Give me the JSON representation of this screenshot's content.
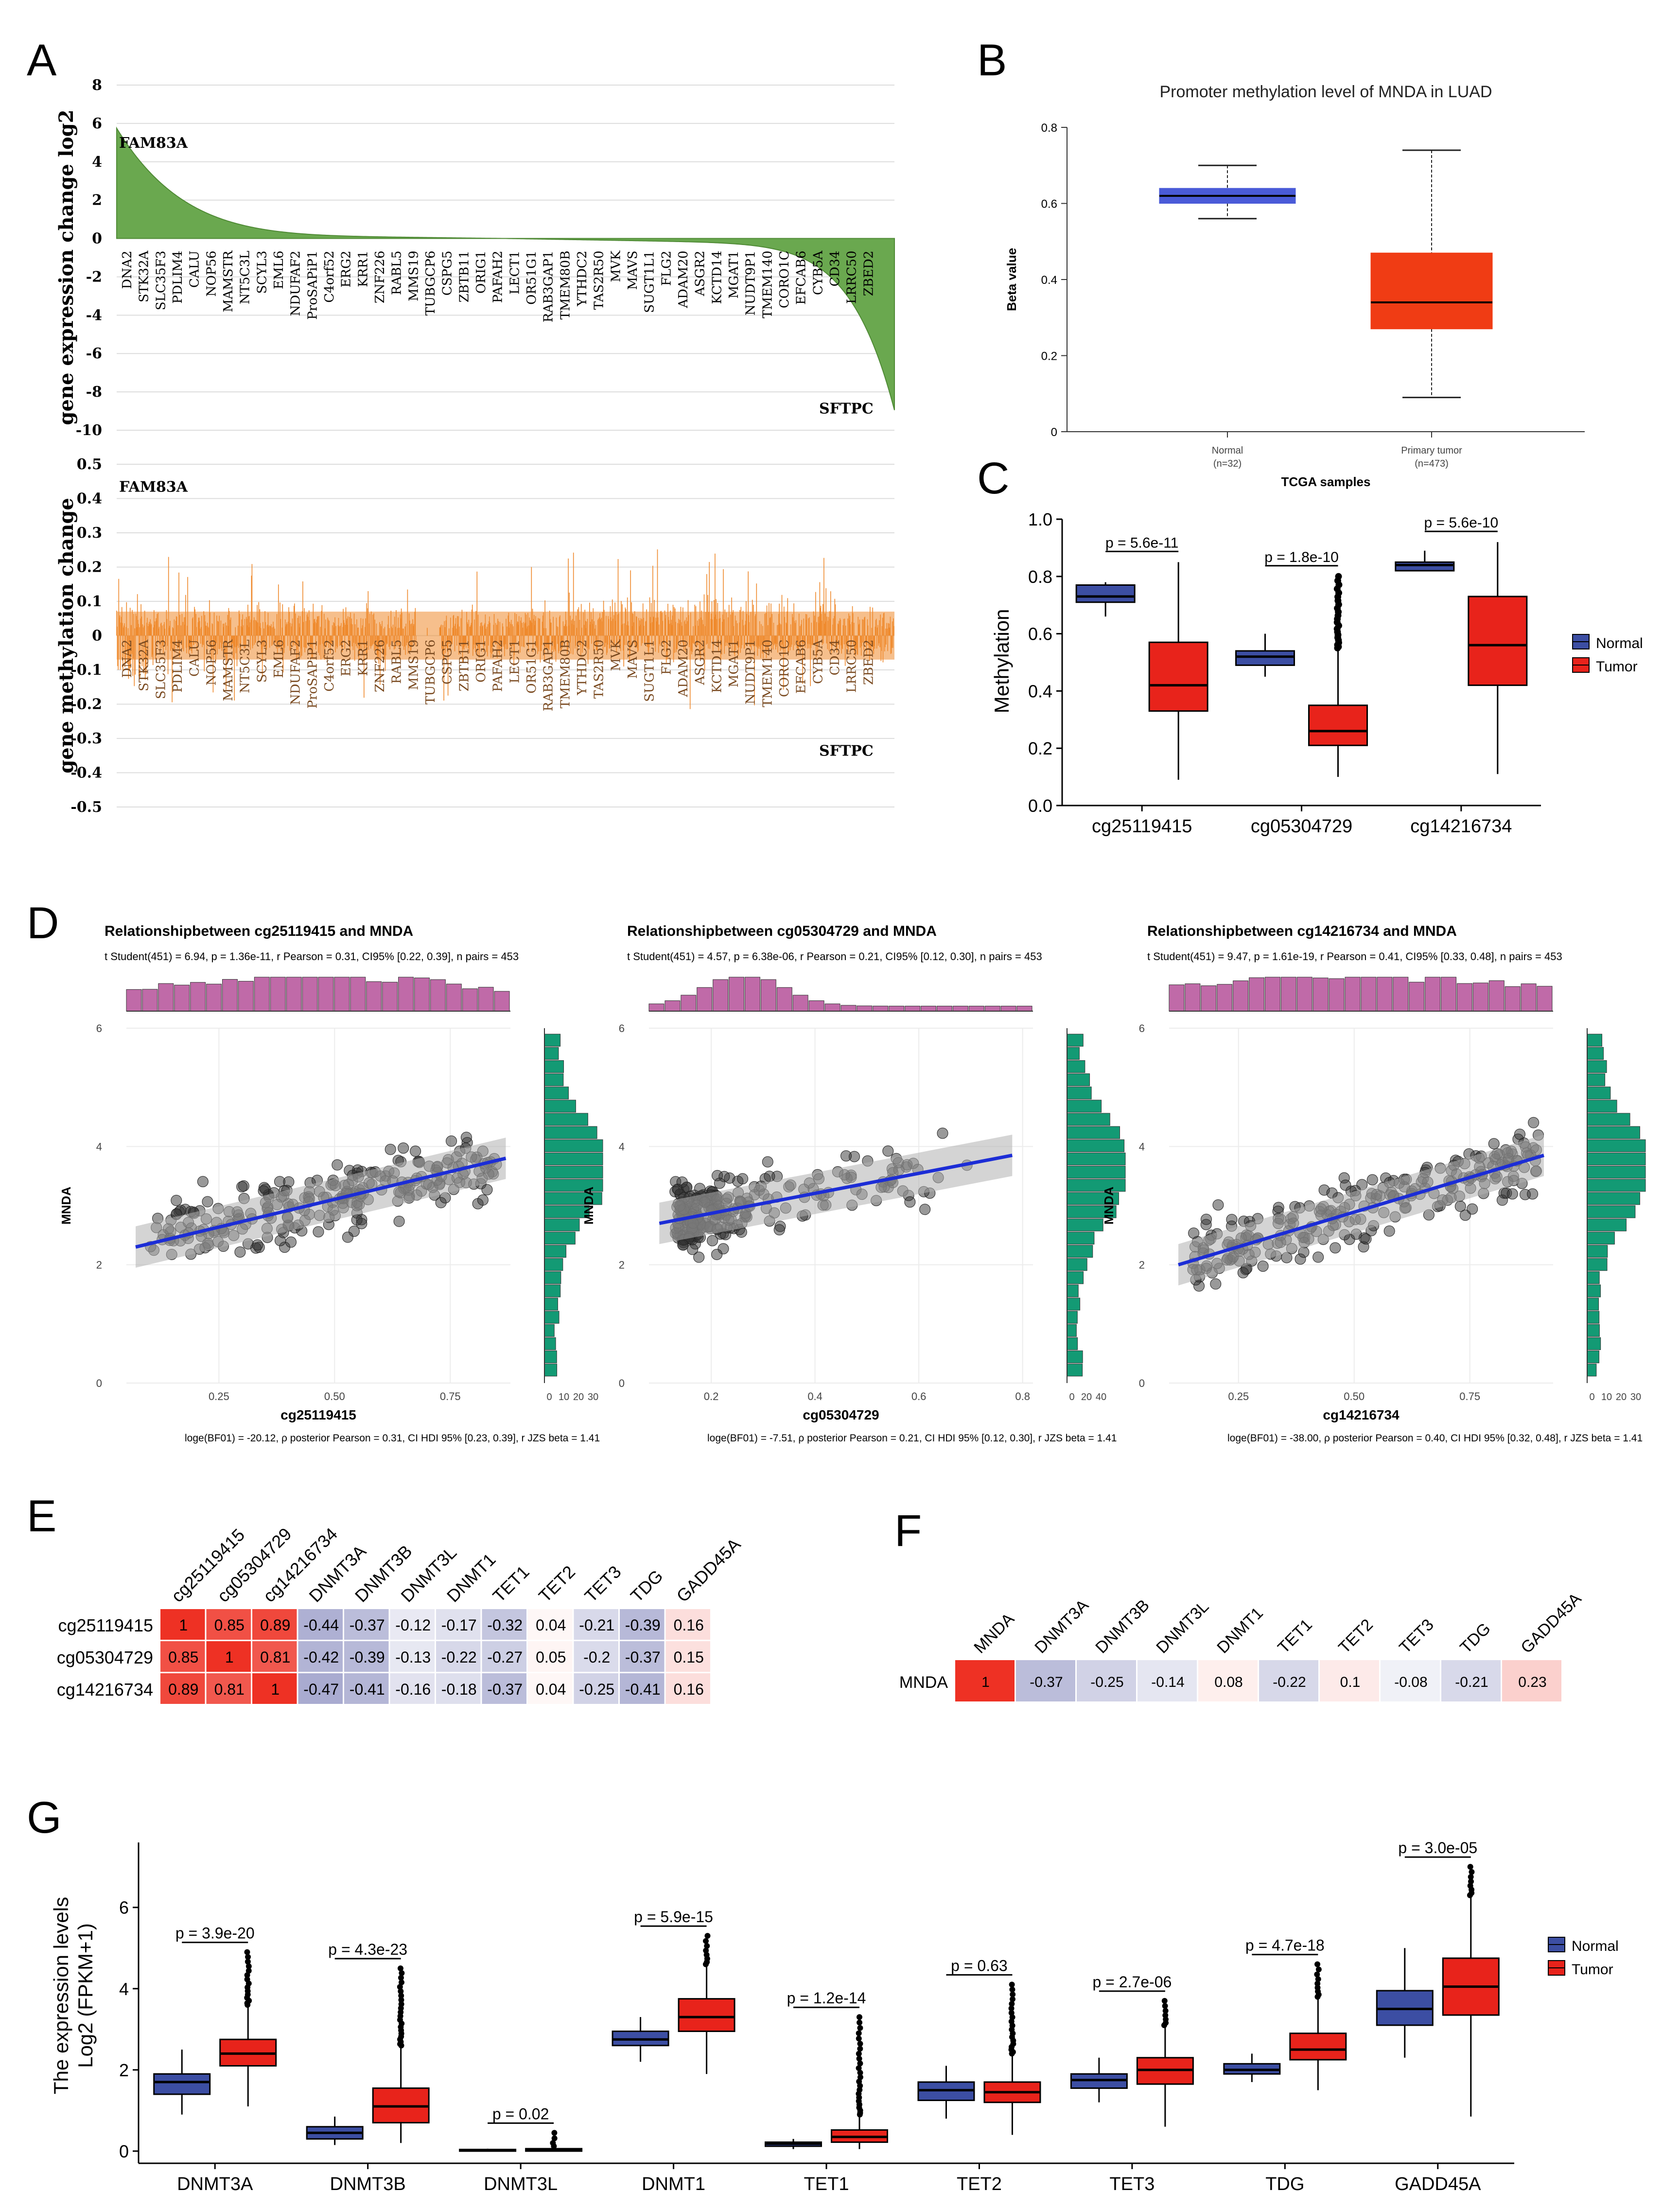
{
  "figure": {
    "panels": {
      "A": {
        "letter": "A"
      },
      "B": {
        "letter": "B"
      },
      "C": {
        "letter": "C"
      },
      "D": {
        "letter": "D"
      },
      "E": {
        "letter": "E"
      },
      "F": {
        "letter": "F"
      },
      "G": {
        "letter": "G"
      }
    }
  },
  "colors": {
    "green": "#6aa84f",
    "orange": "#ef8a2e",
    "normal_blue": "#3c4ea3",
    "tumor_red": "#e8231b",
    "box_blue_b": "#4a5bd8",
    "box_red_b": "#f03c14",
    "hist_pink": "#c06aa8",
    "hist_green": "#139a74",
    "line_blue": "#1c2dd6",
    "heat_red": "#ee3124",
    "heat_blue": "#8c8fc0"
  },
  "chart_data": [
    {
      "id": "A_top",
      "type": "area",
      "ylabel": "gene expression change log2",
      "ylim": [
        -10,
        8
      ],
      "yticks": [
        8,
        6,
        4,
        2,
        0,
        -2,
        -4,
        -6,
        -8,
        -10
      ],
      "top_gene": "FAM83A",
      "bottom_gene": "SFTPC",
      "genes": [
        "DNA2",
        "STK32A",
        "SLC35F3",
        "PDLIM4",
        "CALU",
        "NOP56",
        "MAMSTR",
        "NT5C3L",
        "SCYL3",
        "EML6",
        "NDUFAF2",
        "ProSAPiP1",
        "C4orf52",
        "ERG2",
        "KRR1",
        "ZNF226",
        "RABL5",
        "MMS19",
        "TUBGCP6",
        "CSPG5",
        "ZBTB11",
        "ORIG1",
        "PAFAH2",
        "LECT1",
        "OR51G1",
        "RAB3GAP1",
        "TMEM80B",
        "YTHDC2",
        "TAS2R50",
        "MVK",
        "MAVS",
        "SUGT1L1",
        "FLG2",
        "ADAM20",
        "ASGR2",
        "KCTD14",
        "MGAT1",
        "NUDT9P1",
        "TMEM140",
        "CORO1C",
        "EFCAB6",
        "CYB5A",
        "CD34",
        "LRRC50",
        "ZBED2"
      ],
      "max_value": 5.5,
      "min_value": -8.6
    },
    {
      "id": "A_bottom",
      "type": "bar",
      "ylabel": "gene methylation change",
      "ylim": [
        -0.5,
        0.5
      ],
      "yticks": [
        0.5,
        0.4,
        0.3,
        0.2,
        0.1,
        0,
        -0.1,
        -0.2,
        -0.3,
        -0.4,
        -0.5
      ],
      "top_gene": "FAM83A",
      "bottom_gene": "SFTPC"
    },
    {
      "id": "B",
      "type": "box",
      "title": "Promoter methylation level of MNDA in LUAD",
      "ylabel": "Beta value",
      "xlabel": "TCGA samples",
      "ylim": [
        0,
        0.8
      ],
      "yticks": [
        0,
        0.2,
        0.4,
        0.6,
        0.8
      ],
      "groups": [
        {
          "name": "Normal",
          "n_label": "(n=32)",
          "min": 0.56,
          "q1": 0.6,
          "median": 0.62,
          "q3": 0.64,
          "max": 0.7
        },
        {
          "name": "Primary tumor",
          "n_label": "(n=473)",
          "min": 0.09,
          "q1": 0.27,
          "median": 0.34,
          "q3": 0.47,
          "max": 0.74
        }
      ]
    },
    {
      "id": "C",
      "type": "box",
      "ylabel": "Methylation",
      "ylim": [
        0,
        1.0
      ],
      "yticks": [
        "0.0",
        "0.2",
        "0.4",
        "0.6",
        "0.8",
        "1.0"
      ],
      "legend": [
        "Normal",
        "Tumor"
      ],
      "categories": [
        "cg25119415",
        "cg05304729",
        "cg14216734"
      ],
      "pvalues": [
        "p = 5.6e-11",
        "p = 1.8e-10",
        "p = 5.6e-10"
      ],
      "normal": [
        {
          "min": 0.66,
          "q1": 0.71,
          "median": 0.73,
          "q3": 0.77,
          "max": 0.78
        },
        {
          "min": 0.45,
          "q1": 0.49,
          "median": 0.52,
          "q3": 0.54,
          "max": 0.6
        },
        {
          "min": 0.82,
          "q1": 0.82,
          "median": 0.84,
          "q3": 0.85,
          "max": 0.89
        }
      ],
      "tumor": [
        {
          "min": 0.09,
          "q1": 0.33,
          "median": 0.42,
          "q3": 0.57,
          "max": 0.85
        },
        {
          "min": 0.1,
          "q1": 0.21,
          "median": 0.26,
          "q3": 0.35,
          "max": 0.55,
          "outliers_to": 0.8
        },
        {
          "min": 0.11,
          "q1": 0.42,
          "median": 0.56,
          "q3": 0.73,
          "max": 0.92
        }
      ]
    },
    {
      "id": "D",
      "type": "scatter",
      "ylabel": "MNDA",
      "ylim": [
        0,
        6
      ],
      "yticks": [
        0,
        2,
        4,
        6
      ],
      "bottom_ticks_label": "0 10 20 30",
      "subplots": [
        {
          "title": "Relationshipbetween cg25119415 and MNDA",
          "stats": "t Student(451) = 6.94, p = 1.36e-11, r Pearson = 0.31, CI95% [0.22, 0.39], n pairs = 453",
          "xlabel": "cg25119415",
          "bayes": "loge(BF01) = -20.12, ρ posterior Pearson = 0.31, CI HDI 95% [0.23, 0.39], r JZS beta = 1.41",
          "xlim": [
            0.05,
            0.88
          ],
          "xticks": [
            "0.25",
            "0.50",
            "0.75"
          ],
          "xtick_values": [
            0.25,
            0.5,
            0.75
          ],
          "hist_ticks": [
            "0",
            "10",
            "20",
            "30"
          ],
          "line": [
            [
              0.07,
              2.3
            ],
            [
              0.87,
              3.8
            ]
          ]
        },
        {
          "title": "Relationshipbetween cg05304729 and MNDA",
          "stats": "t Student(451) = 4.57, p = 6.38e-06, r Pearson = 0.21, CI95% [0.12, 0.30], n pairs = 453",
          "xlabel": "cg05304729",
          "bayes": "loge(BF01) = -7.51, ρ posterior Pearson = 0.21, CI HDI 95% [0.12, 0.30], r JZS beta = 1.41",
          "xlim": [
            0.08,
            0.82
          ],
          "xticks": [
            "0.2",
            "0.4",
            "0.6",
            "0.8"
          ],
          "xtick_values": [
            0.2,
            0.4,
            0.6,
            0.8
          ],
          "hist_ticks": [
            "0",
            "20",
            "40"
          ],
          "line": [
            [
              0.1,
              2.7
            ],
            [
              0.78,
              3.85
            ]
          ]
        },
        {
          "title": "Relationshipbetween cg14216734 and MNDA",
          "stats": "t Student(451) = 9.47, p = 1.61e-19, r Pearson = 0.41, CI95% [0.33, 0.48], n pairs = 453",
          "xlabel": "cg14216734",
          "bayes": "loge(BF01) = -38.00, ρ posterior Pearson = 0.40, CI HDI 95% [0.32, 0.48], r JZS beta = 1.41",
          "xlim": [
            0.1,
            0.93
          ],
          "xticks": [
            "0.25",
            "0.50",
            "0.75"
          ],
          "xtick_values": [
            0.25,
            0.5,
            0.75
          ],
          "hist_ticks": [
            "0",
            "10",
            "20",
            "30"
          ],
          "line": [
            [
              0.12,
              2.0
            ],
            [
              0.91,
              3.85
            ]
          ]
        }
      ]
    },
    {
      "id": "E",
      "type": "heatmap",
      "columns": [
        "cg25119415",
        "cg05304729",
        "cg14216734",
        "DNMT3A",
        "DNMT3B",
        "DNMT3L",
        "DNMT1",
        "TET1",
        "TET2",
        "TET3",
        "TDG",
        "GADD45A"
      ],
      "rows": [
        "cg25119415",
        "cg05304729",
        "cg14216734"
      ],
      "values": [
        [
          1,
          0.85,
          0.89,
          -0.44,
          -0.37,
          -0.12,
          -0.17,
          -0.32,
          0.04,
          -0.21,
          -0.39,
          0.16
        ],
        [
          0.85,
          1,
          0.81,
          -0.42,
          -0.39,
          -0.13,
          -0.22,
          -0.27,
          0.05,
          -0.2,
          -0.37,
          0.15
        ],
        [
          0.89,
          0.81,
          1,
          -0.47,
          -0.41,
          -0.16,
          -0.18,
          -0.37,
          0.04,
          -0.25,
          -0.41,
          0.16
        ]
      ]
    },
    {
      "id": "F",
      "type": "heatmap",
      "columns": [
        "MNDA",
        "DNMT3A",
        "DNMT3B",
        "DNMT3L",
        "DNMT1",
        "TET1",
        "TET2",
        "TET3",
        "TDG",
        "GADD45A"
      ],
      "rows": [
        "MNDA"
      ],
      "values": [
        [
          1,
          -0.37,
          -0.25,
          -0.14,
          0.08,
          -0.22,
          0.1,
          -0.08,
          -0.21,
          0.23
        ]
      ]
    },
    {
      "id": "G",
      "type": "box",
      "ylabel_line1": "The expression levels",
      "ylabel_line2": "Log2 (FPKM+1)",
      "ylim": [
        -0.3,
        7.6
      ],
      "yticks": [
        0,
        2,
        4,
        6
      ],
      "legend": [
        "Normal",
        "Tumor"
      ],
      "categories": [
        "DNMT3A",
        "DNMT3B",
        "DNMT3L",
        "DNMT1",
        "TET1",
        "TET2",
        "TET3",
        "TDG",
        "GADD45A"
      ],
      "pvalues": [
        "p = 3.9e-20",
        "p = 4.3e-23",
        "p = 0.02",
        "p = 5.9e-15",
        "p = 1.2e-14",
        "p = 0.63",
        "p = 2.7e-06",
        "p = 4.7e-18",
        "p = 3.0e-05"
      ],
      "normal": [
        {
          "min": 0.9,
          "q1": 1.4,
          "median": 1.7,
          "q3": 1.9,
          "max": 2.5
        },
        {
          "min": 0.15,
          "q1": 0.3,
          "median": 0.45,
          "q3": 0.6,
          "max": 0.85
        },
        {
          "min": 0.0,
          "q1": 0.0,
          "median": 0.02,
          "q3": 0.04,
          "max": 0.06
        },
        {
          "min": 2.2,
          "q1": 2.6,
          "median": 2.75,
          "q3": 2.95,
          "max": 3.3
        },
        {
          "min": 0.05,
          "q1": 0.12,
          "median": 0.18,
          "q3": 0.22,
          "max": 0.3
        },
        {
          "min": 0.8,
          "q1": 1.25,
          "median": 1.5,
          "q3": 1.7,
          "max": 2.1
        },
        {
          "min": 1.2,
          "q1": 1.55,
          "median": 1.75,
          "q3": 1.9,
          "max": 2.3
        },
        {
          "min": 1.7,
          "q1": 1.9,
          "median": 2.0,
          "q3": 2.15,
          "max": 2.4
        },
        {
          "min": 2.3,
          "q1": 3.1,
          "median": 3.5,
          "q3": 3.95,
          "max": 5.0
        }
      ],
      "tumor": [
        {
          "min": 1.1,
          "q1": 2.1,
          "median": 2.4,
          "q3": 2.75,
          "max": 3.6,
          "outliers_to": 4.9
        },
        {
          "min": 0.2,
          "q1": 0.7,
          "median": 1.1,
          "q3": 1.55,
          "max": 2.6,
          "outliers_to": 4.5
        },
        {
          "min": 0.0,
          "q1": 0.0,
          "median": 0.02,
          "q3": 0.06,
          "max": 0.12,
          "outliers_to": 0.45
        },
        {
          "min": 1.9,
          "q1": 2.95,
          "median": 3.3,
          "q3": 3.75,
          "max": 4.6,
          "outliers_to": 5.3
        },
        {
          "min": 0.05,
          "q1": 0.22,
          "median": 0.35,
          "q3": 0.52,
          "max": 0.9,
          "outliers_to": 3.3
        },
        {
          "min": 0.4,
          "q1": 1.2,
          "median": 1.45,
          "q3": 1.7,
          "max": 2.4,
          "outliers_to": 4.1
        },
        {
          "min": 0.6,
          "q1": 1.65,
          "median": 2.0,
          "q3": 2.3,
          "max": 3.1,
          "outliers_to": 3.7
        },
        {
          "min": 1.5,
          "q1": 2.25,
          "median": 2.5,
          "q3": 2.9,
          "max": 3.8,
          "outliers_to": 4.6
        },
        {
          "min": 0.85,
          "q1": 3.35,
          "median": 4.05,
          "q3": 4.75,
          "max": 6.3,
          "outliers_to": 7.0
        }
      ]
    }
  ]
}
